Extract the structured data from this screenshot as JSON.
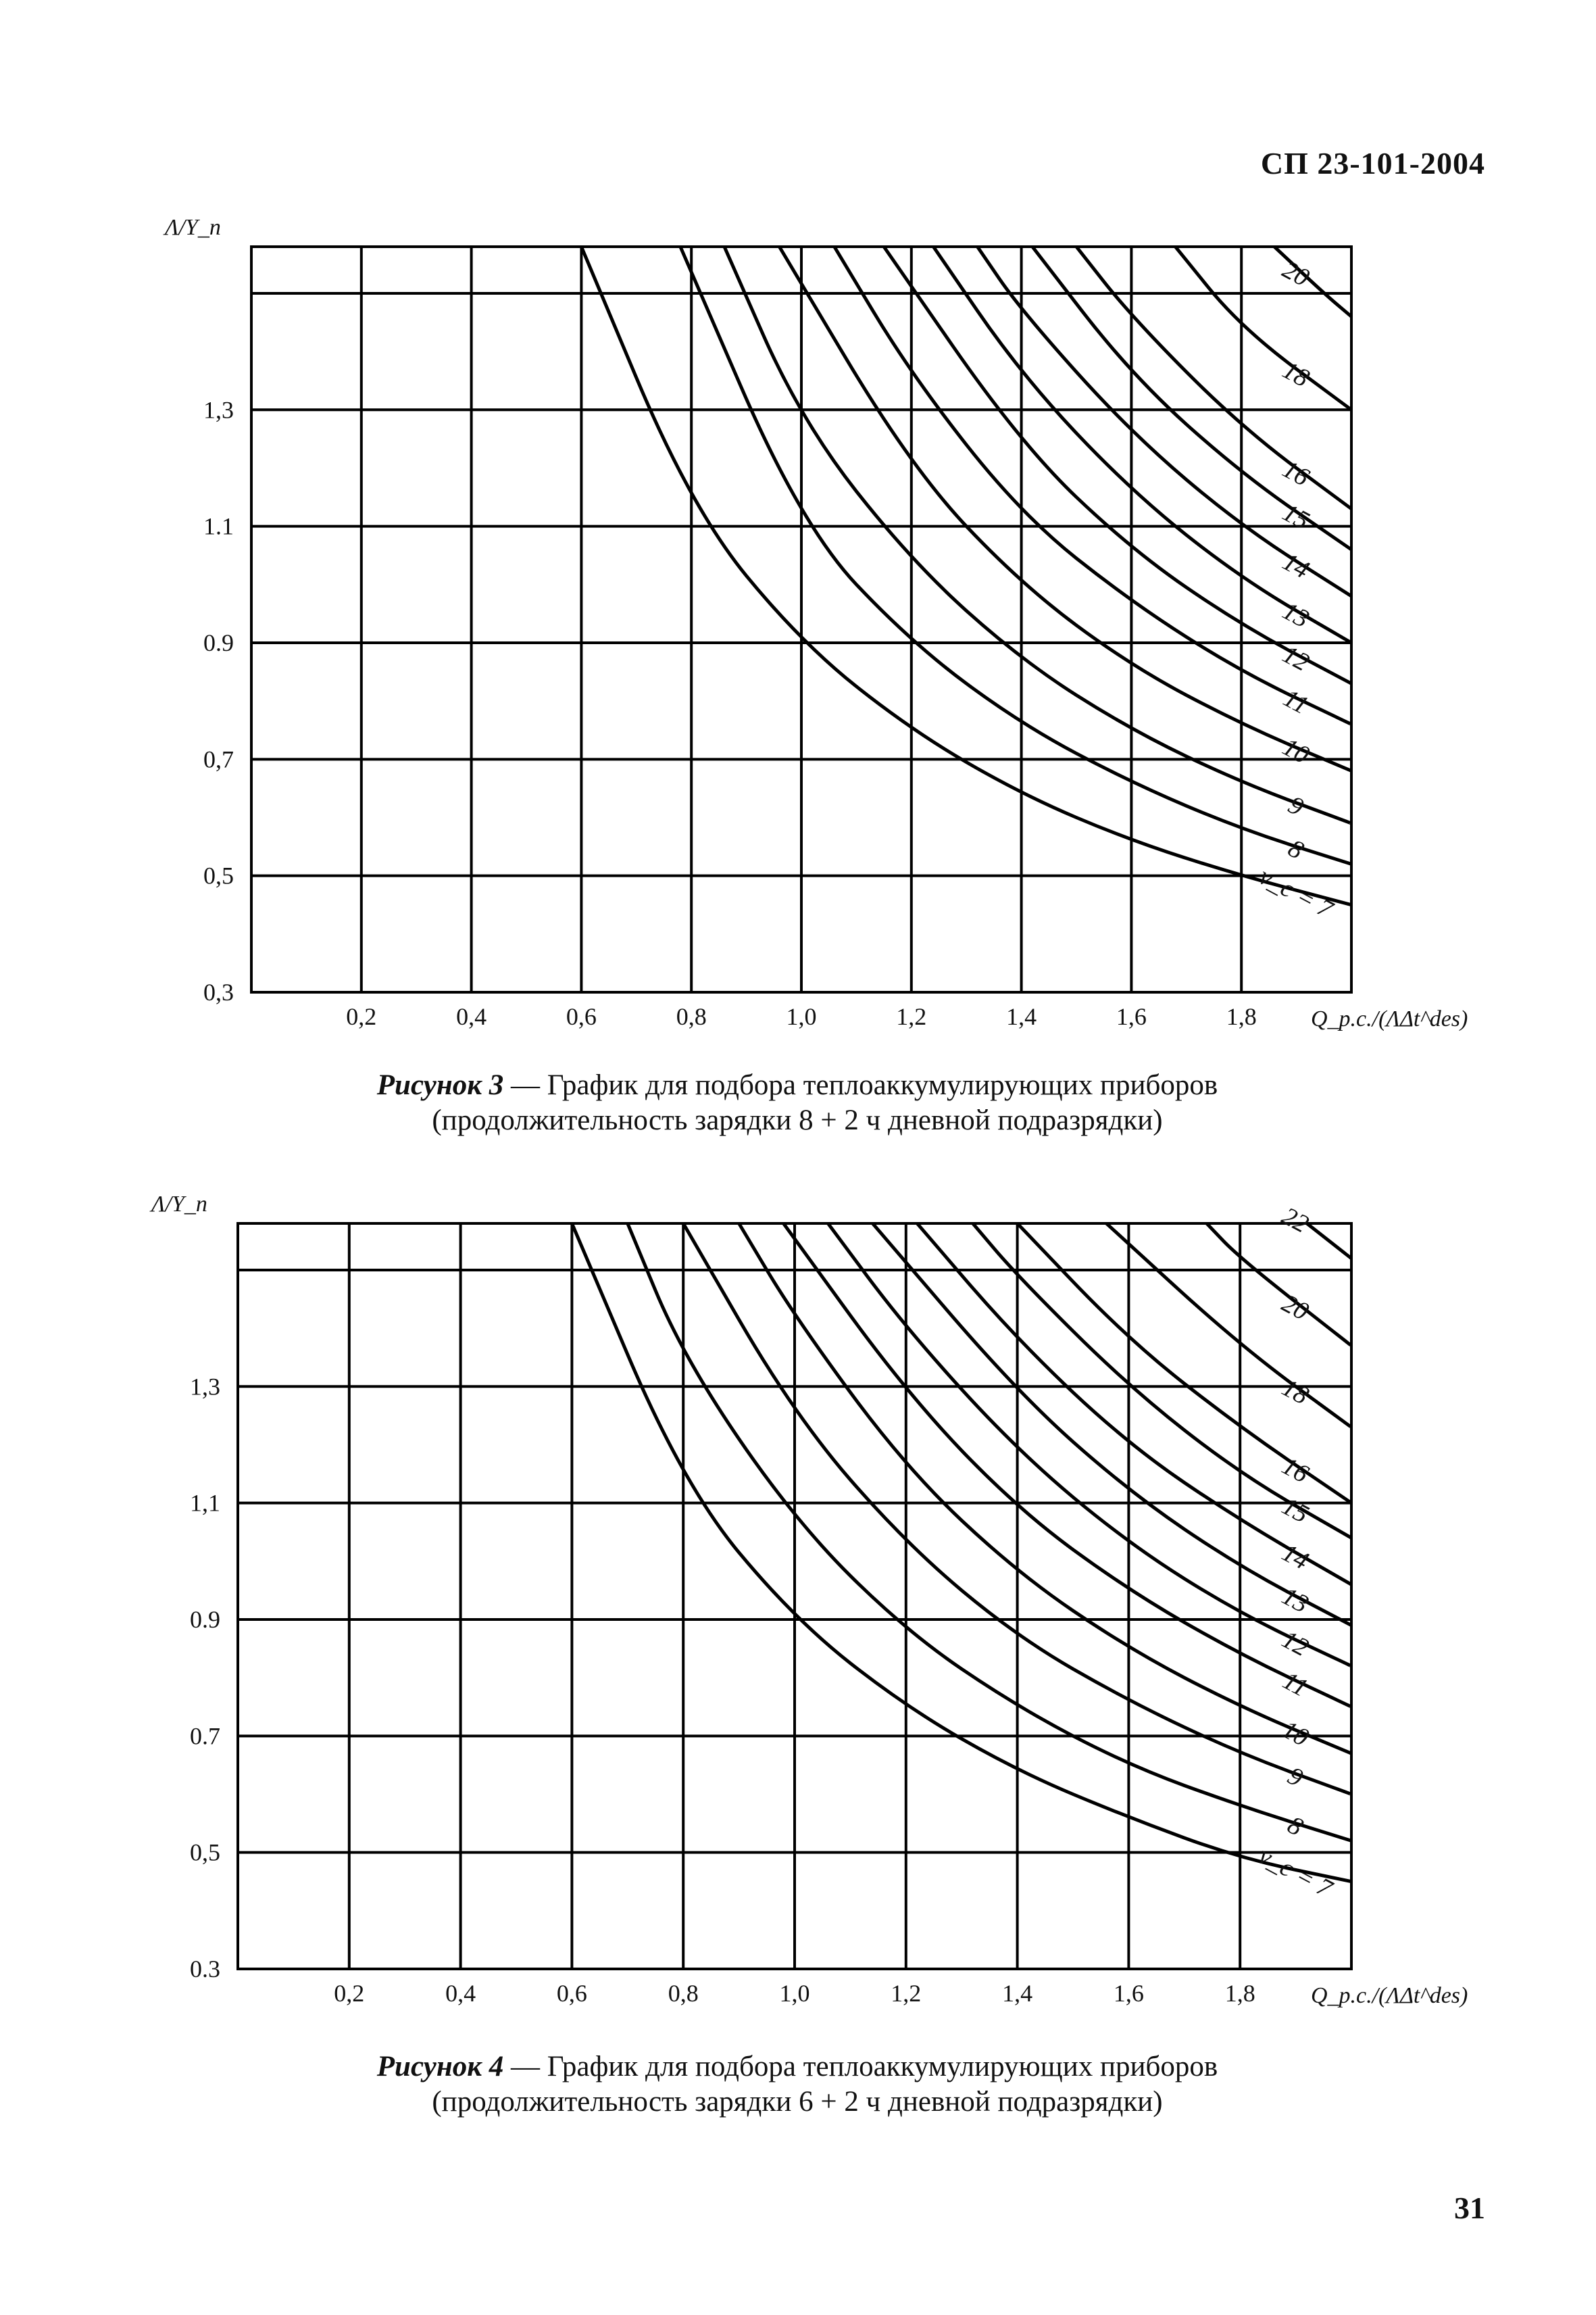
{
  "page": {
    "header": "СП 23-101-2004",
    "number": "31"
  },
  "chart_data": [
    {
      "type": "line",
      "ylabel": "Λ/Y_n",
      "xlabel": "Q_p.c./(ΛΔt^des)",
      "x_ticks": [
        "0,2",
        "0,4",
        "0,6",
        "0,8",
        "1,0",
        "1,2",
        "1,4",
        "1,6",
        "1,8"
      ],
      "y_ticks": [
        "0,3",
        "0,5",
        "0,7",
        "0.9",
        "1.1",
        "1,3"
      ],
      "xlim": [
        0,
        2.0
      ],
      "ylim": [
        0.3,
        1.58
      ],
      "grid": true,
      "series": [
        {
          "name": "ν_c = 7",
          "label": "ν_c = 7",
          "x": [
            0.6,
            0.8,
            1.0,
            1.2,
            1.4,
            1.6,
            1.8,
            2.0
          ],
          "y": [
            1.58,
            1.13,
            0.9,
            0.75,
            0.64,
            0.56,
            0.5,
            0.45
          ]
        },
        {
          "name": "8",
          "label": "8",
          "x": [
            0.78,
            1.0,
            1.2,
            1.4,
            1.6,
            1.8,
            2.0
          ],
          "y": [
            1.58,
            1.1,
            0.9,
            0.76,
            0.66,
            0.58,
            0.52
          ]
        },
        {
          "name": "9",
          "label": "9",
          "x": [
            0.86,
            1.0,
            1.2,
            1.4,
            1.6,
            1.8,
            2.0
          ],
          "y": [
            1.58,
            1.28,
            1.04,
            0.87,
            0.75,
            0.66,
            0.59
          ]
        },
        {
          "name": "10",
          "label": "10",
          "x": [
            0.96,
            1.2,
            1.4,
            1.6,
            1.8,
            2.0
          ],
          "y": [
            1.58,
            1.2,
            1.0,
            0.86,
            0.76,
            0.68
          ]
        },
        {
          "name": "11",
          "label": "11",
          "x": [
            1.06,
            1.2,
            1.4,
            1.6,
            1.8,
            2.0
          ],
          "y": [
            1.58,
            1.36,
            1.12,
            0.97,
            0.85,
            0.76
          ]
        },
        {
          "name": "12",
          "label": "12",
          "x": [
            1.15,
            1.4,
            1.6,
            1.8,
            2.0
          ],
          "y": [
            1.58,
            1.24,
            1.06,
            0.93,
            0.83
          ]
        },
        {
          "name": "13",
          "label": "13",
          "x": [
            1.24,
            1.4,
            1.6,
            1.8,
            2.0
          ],
          "y": [
            1.58,
            1.36,
            1.16,
            1.01,
            0.9
          ]
        },
        {
          "name": "14",
          "label": "14",
          "x": [
            1.32,
            1.4,
            1.6,
            1.8,
            2.0
          ],
          "y": [
            1.58,
            1.47,
            1.26,
            1.1,
            0.98
          ]
        },
        {
          "name": "15",
          "label": "15",
          "x": [
            1.42,
            1.6,
            1.8,
            2.0
          ],
          "y": [
            1.58,
            1.36,
            1.19,
            1.06
          ]
        },
        {
          "name": "16",
          "label": "16",
          "x": [
            1.5,
            1.6,
            1.8,
            2.0
          ],
          "y": [
            1.58,
            1.46,
            1.27,
            1.13
          ]
        },
        {
          "name": "18",
          "label": "18",
          "x": [
            1.68,
            1.8,
            2.0
          ],
          "y": [
            1.58,
            1.44,
            1.3
          ]
        },
        {
          "name": "20",
          "label": "20",
          "x": [
            1.86,
            1.95,
            2.0
          ],
          "y": [
            1.58,
            1.5,
            1.46
          ]
        }
      ]
    },
    {
      "type": "line",
      "ylabel": "Λ/Y_n",
      "xlabel": "Q_p.c./(ΛΔt^des)",
      "x_ticks": [
        "0,2",
        "0,4",
        "0,6",
        "0,8",
        "1,0",
        "1,2",
        "1,4",
        "1,6",
        "1,8"
      ],
      "y_ticks": [
        "0.3",
        "0,5",
        "0.7",
        "0.9",
        "1,1",
        "1,3"
      ],
      "xlim": [
        0,
        2.0
      ],
      "ylim": [
        0.3,
        1.58
      ],
      "grid": true,
      "series": [
        {
          "name": "ν_c = 7",
          "label": "ν_c = 7",
          "x": [
            0.6,
            0.8,
            1.0,
            1.2,
            1.4,
            1.6,
            1.8,
            2.0
          ],
          "y": [
            1.58,
            1.13,
            0.9,
            0.75,
            0.64,
            0.56,
            0.49,
            0.45
          ]
        },
        {
          "name": "8",
          "label": "8",
          "x": [
            0.7,
            0.8,
            1.0,
            1.2,
            1.4,
            1.6,
            1.8,
            2.0
          ],
          "y": [
            1.58,
            1.35,
            1.07,
            0.88,
            0.75,
            0.65,
            0.58,
            0.52
          ]
        },
        {
          "name": "9",
          "label": "9",
          "x": [
            0.8,
            1.0,
            1.2,
            1.4,
            1.6,
            1.8,
            2.0
          ],
          "y": [
            1.58,
            1.25,
            1.03,
            0.87,
            0.76,
            0.67,
            0.6
          ]
        },
        {
          "name": "10",
          "label": "10",
          "x": [
            0.9,
            1.0,
            1.2,
            1.4,
            1.6,
            1.8,
            2.0
          ],
          "y": [
            1.58,
            1.42,
            1.16,
            0.98,
            0.85,
            0.75,
            0.67
          ]
        },
        {
          "name": "11",
          "label": "11",
          "x": [
            0.98,
            1.2,
            1.4,
            1.6,
            1.8,
            2.0
          ],
          "y": [
            1.58,
            1.29,
            1.09,
            0.95,
            0.84,
            0.75
          ]
        },
        {
          "name": "12",
          "label": "12",
          "x": [
            1.06,
            1.2,
            1.4,
            1.6,
            1.8,
            2.0
          ],
          "y": [
            1.58,
            1.4,
            1.19,
            1.03,
            0.91,
            0.82
          ]
        },
        {
          "name": "13",
          "label": "13",
          "x": [
            1.14,
            1.4,
            1.6,
            1.8,
            2.0
          ],
          "y": [
            1.58,
            1.29,
            1.12,
            0.99,
            0.89
          ]
        },
        {
          "name": "14",
          "label": "14",
          "x": [
            1.22,
            1.4,
            1.6,
            1.8,
            2.0
          ],
          "y": [
            1.58,
            1.38,
            1.2,
            1.07,
            0.96
          ]
        },
        {
          "name": "15",
          "label": "15",
          "x": [
            1.32,
            1.4,
            1.6,
            1.8,
            2.0
          ],
          "y": [
            1.58,
            1.49,
            1.3,
            1.15,
            1.04
          ]
        },
        {
          "name": "16",
          "label": "16",
          "x": [
            1.4,
            1.6,
            1.8,
            2.0
          ],
          "y": [
            1.58,
            1.38,
            1.23,
            1.1
          ]
        },
        {
          "name": "18",
          "label": "18",
          "x": [
            1.56,
            1.8,
            2.0
          ],
          "y": [
            1.58,
            1.37,
            1.23
          ]
        },
        {
          "name": "20",
          "label": "20",
          "x": [
            1.74,
            1.8,
            2.0
          ],
          "y": [
            1.58,
            1.52,
            1.37
          ]
        },
        {
          "name": "22",
          "label": "22",
          "x": [
            1.92,
            2.0
          ],
          "y": [
            1.58,
            1.52
          ]
        }
      ]
    }
  ],
  "captions": [
    {
      "label": "Рисунок 3",
      "line1": " — График для подбора теплоаккумулирующих приборов",
      "line2": "(продолжительность зарядки 8 + 2 ч дневной подразрядки)"
    },
    {
      "label": "Рисунок 4",
      "line1": " — График для подбора теплоаккумулирующих приборов",
      "line2": "(продолжительность зарядки 6 + 2 ч дневной подразрядки)"
    }
  ]
}
